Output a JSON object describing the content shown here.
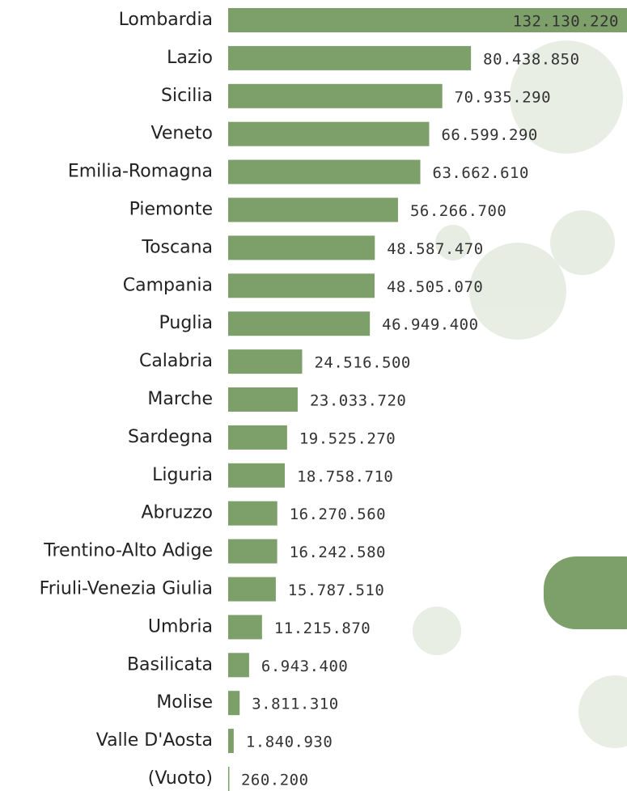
{
  "chart_data": {
    "type": "bar",
    "orientation": "horizontal",
    "categories": [
      "Lombardia",
      "Lazio",
      "Sicilia",
      "Veneto",
      "Emilia-Romagna",
      "Piemonte",
      "Toscana",
      "Campania",
      "Puglia",
      "Calabria",
      "Marche",
      "Sardegna",
      "Liguria",
      "Abruzzo",
      "Trentino-Alto Adige",
      "Friuli-Venezia Giulia",
      "Umbria",
      "Basilicata",
      "Molise",
      "Valle D'Aosta",
      "(Vuoto)"
    ],
    "values": [
      132130220,
      80438850,
      70935290,
      66599290,
      63662610,
      56266700,
      48587470,
      48505070,
      46949400,
      24516500,
      23033720,
      19525270,
      18758710,
      16270560,
      16242580,
      15787510,
      11215870,
      6943400,
      3811310,
      1840930,
      260200
    ],
    "value_labels": [
      "132.130.220",
      "80.438.850",
      "70.935.290",
      "66.599.290",
      "63.662.610",
      "56.266.700",
      "48.587.470",
      "48.505.070",
      "46.949.400",
      "24.516.500",
      "23.033.720",
      "19.525.270",
      "18.758.710",
      "16.270.560",
      "16.242.580",
      "15.787.510",
      "11.215.870",
      "6.943.400",
      "3.811.310",
      "1.840.930",
      "260.200"
    ],
    "color": "#7d9f6a",
    "xlim": [
      0,
      132130220
    ]
  }
}
